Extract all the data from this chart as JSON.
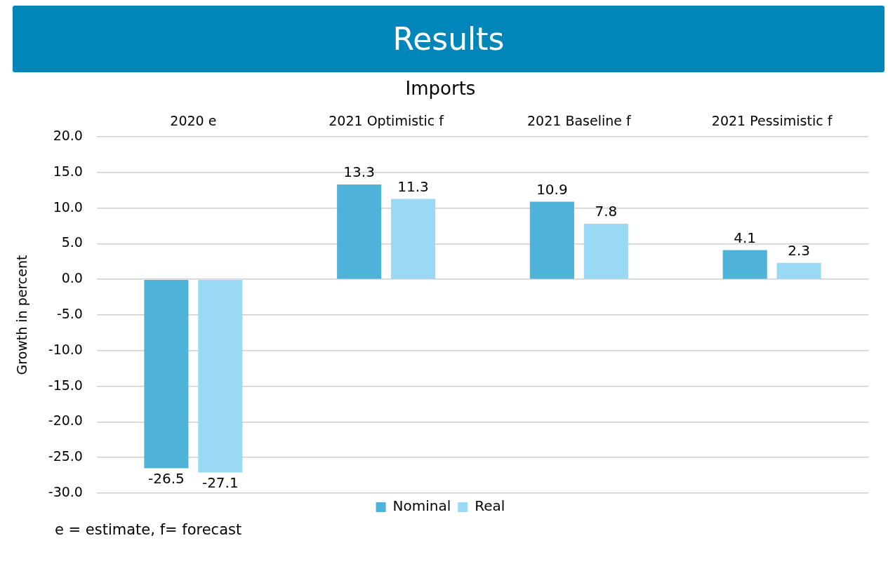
{
  "chart_data": {
    "type": "bar",
    "title": "Results",
    "subtitle": "Imports",
    "ylabel": "Growth in percent",
    "categories": [
      "2020 e",
      "2021 Optimistic f",
      "2021 Baseline f",
      "2021 Pessimistic f"
    ],
    "series": [
      {
        "name": "Nominal",
        "color": "#4fb3d9",
        "values": [
          -26.5,
          13.3,
          10.9,
          4.1
        ]
      },
      {
        "name": "Real",
        "color": "#9ad9f3",
        "values": [
          -27.1,
          11.3,
          7.8,
          2.3
        ]
      }
    ],
    "ylim": [
      -30,
      20
    ],
    "yticks": [
      {
        "value": -30,
        "label": "-30.0"
      },
      {
        "value": -25,
        "label": "-25.0"
      },
      {
        "value": -20,
        "label": "-20.0"
      },
      {
        "value": -15,
        "label": "-15.0"
      },
      {
        "value": -10,
        "label": "-10.0"
      },
      {
        "value": -5,
        "label": "-5.0"
      },
      {
        "value": 0,
        "label": "0.0"
      },
      {
        "value": 5,
        "label": "5.0"
      },
      {
        "value": 10,
        "label": "10.0"
      },
      {
        "value": 15,
        "label": "15.0"
      },
      {
        "value": 20,
        "label": "20.0"
      }
    ],
    "grid": "y",
    "legend": "bottom",
    "data_labels": true,
    "annotations": [
      "e = estimate, f= forecast"
    ]
  }
}
